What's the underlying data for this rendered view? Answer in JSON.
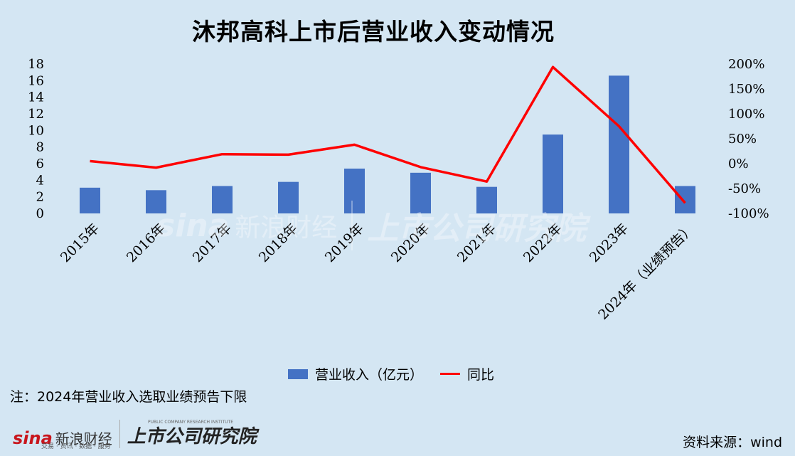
{
  "chart_data": {
    "type": "bar",
    "title": "沐邦高科上市后营业收入变动情况",
    "categories": [
      "2015年",
      "2016年",
      "2017年",
      "2018年",
      "2019年",
      "2020年",
      "2021年",
      "2022年",
      "2023年",
      "2024年（业绩预告）"
    ],
    "series": [
      {
        "name": "营业收入（亿元）",
        "type": "bar",
        "axis": "left",
        "values": [
          3.1,
          2.8,
          3.3,
          3.8,
          5.4,
          4.9,
          3.2,
          9.5,
          16.6,
          3.3
        ]
      },
      {
        "name": "同比",
        "type": "line",
        "axis": "right",
        "values": [
          5,
          -8,
          19,
          18,
          38,
          -7,
          -36,
          194,
          75,
          -79
        ]
      }
    ],
    "ylim_left": [
      0,
      18
    ],
    "yticks_left": [
      "0",
      "2",
      "4",
      "6",
      "8",
      "10",
      "12",
      "14",
      "16",
      "18"
    ],
    "ylim_right": [
      -100,
      200
    ],
    "yticks_right": [
      "-100%",
      "-50%",
      "0%",
      "50%",
      "100%",
      "150%",
      "200%"
    ],
    "grid": false,
    "legend_position": "bottom",
    "colors": {
      "bar": "#4472c4",
      "line": "#ff0000",
      "background": "#d4e6f3"
    }
  },
  "note": "注：2024年营业收入选取业绩预告下限",
  "source": "资料来源：wind",
  "watermark": {
    "sina": "sina",
    "sina_cn": "新浪财经",
    "sina_tagline": "交易 · 资讯 · 数据 · 服务",
    "research": "上市公司研究院",
    "research_en": "PUBLIC COMPANY RESEARCH INSTITUTE"
  }
}
